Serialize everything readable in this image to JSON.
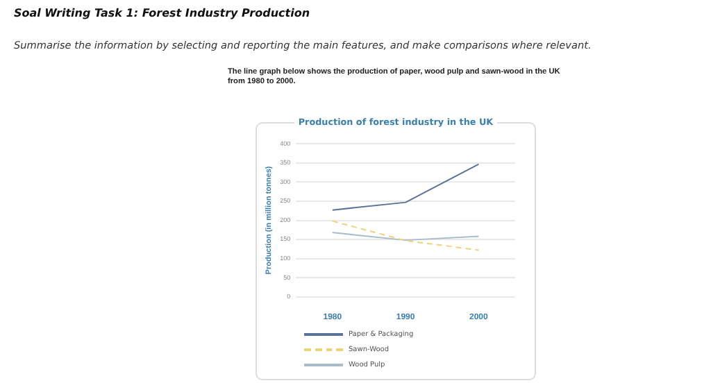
{
  "chart_data": {
    "type": "line",
    "title": "Production of forest industry in the UK",
    "ylabel": "Production (in million tonnes)",
    "annotations": [
      "Soal Writing Task 1: Forest Industry Production",
      "Summarise the information by selecting and reporting the main features, and make comparisons where relevant.",
      "The line graph below shows the production of paper, wood pulp and sawn-wood in the UK from 1980 to 2000."
    ],
    "categories": [
      "1980",
      "1990",
      "2000"
    ],
    "series": [
      {
        "name": "Paper & Packaging",
        "color": "#5a7499",
        "values": [
          227,
          247,
          347
        ],
        "line_style": "solid"
      },
      {
        "name": "Sawn-Wood",
        "color": "#f0d27a",
        "values": [
          198,
          147,
          122
        ],
        "line_style": "dashed"
      },
      {
        "name": "Wood Pulp",
        "color": "#a9bccb",
        "values": [
          168,
          148,
          158
        ],
        "line_style": "solid"
      }
    ],
    "ylim": [
      0,
      400
    ],
    "yticks": [
      0,
      50,
      100,
      150,
      200,
      250,
      300,
      350,
      400
    ],
    "grid": "y",
    "legend": "bottom",
    "marker": "none"
  }
}
